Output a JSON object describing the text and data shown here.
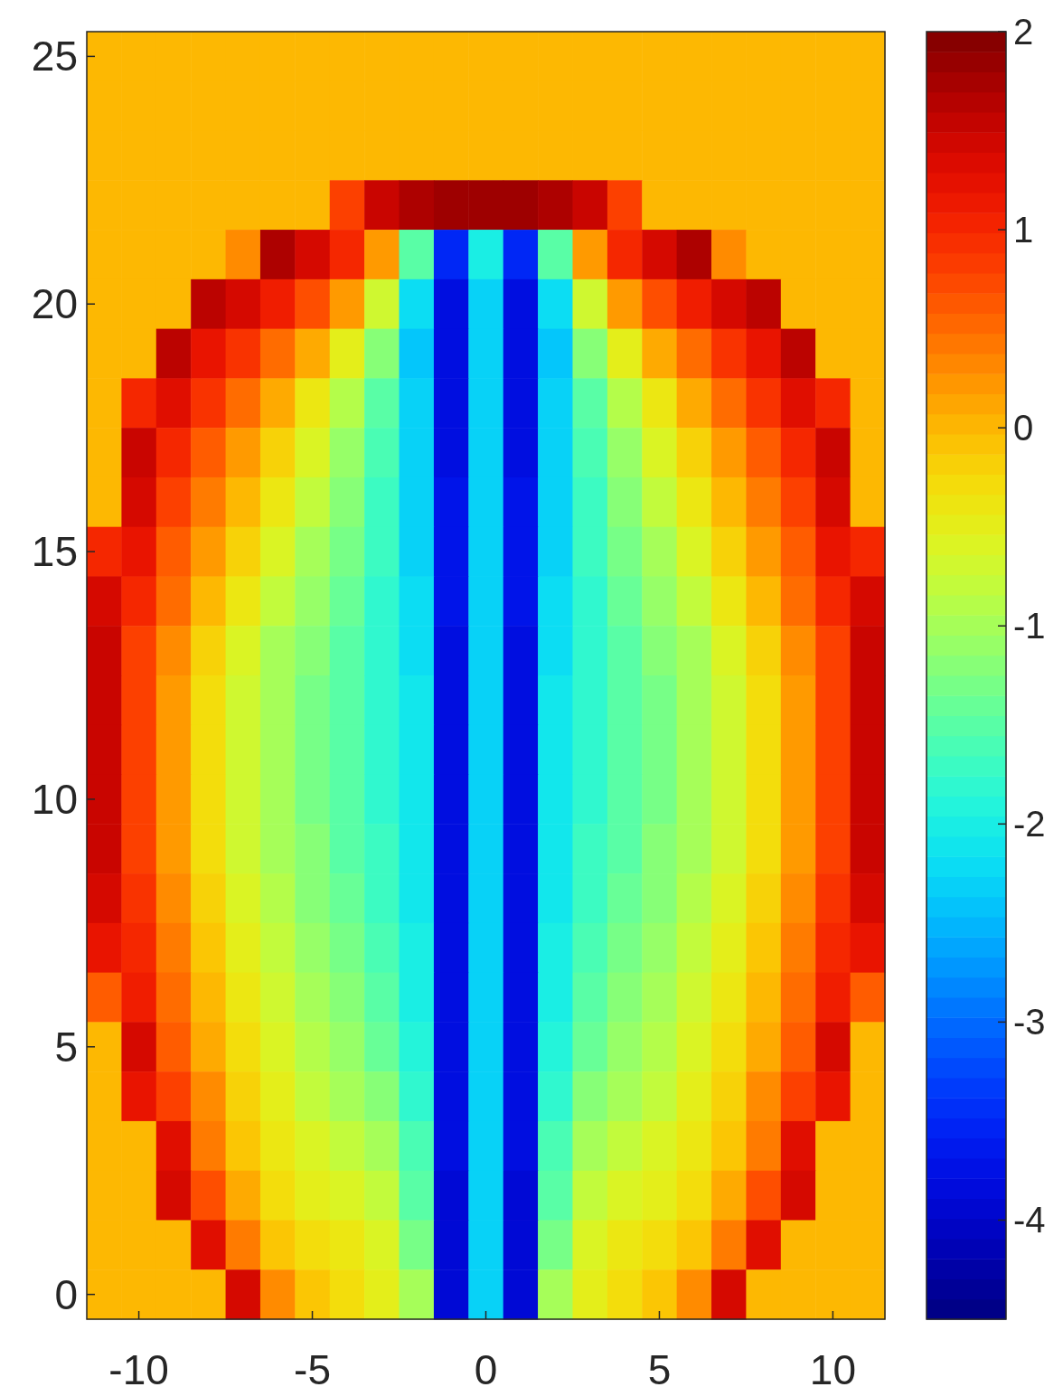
{
  "chart_data": {
    "type": "heatmap",
    "categories": [
      null,
      "-10",
      null,
      null,
      null,
      null,
      "-5",
      null,
      null,
      null,
      null,
      "0",
      null,
      null,
      null,
      null,
      "5",
      null,
      null,
      null,
      null,
      "10",
      null
    ],
    "y_categories": [
      "25",
      null,
      null,
      null,
      null,
      "20",
      null,
      null,
      null,
      null,
      "15",
      null,
      null,
      null,
      null,
      "10",
      null,
      null,
      null,
      null,
      "5",
      null,
      null,
      null,
      null,
      "0"
    ],
    "clim": [
      -4.5,
      2
    ],
    "cticks": [
      -4,
      -3,
      -2,
      -1,
      0,
      1,
      2
    ],
    "cells": [
      [
        0,
        0,
        0,
        0,
        0,
        0,
        0,
        0,
        0,
        0,
        0,
        0,
        0,
        0,
        0,
        0,
        0,
        0,
        0,
        0,
        0,
        0,
        0
      ],
      [
        0,
        0,
        0,
        0,
        0,
        0,
        0,
        0,
        0,
        0,
        0,
        0,
        0,
        0,
        0,
        0,
        0,
        0,
        0,
        0,
        0,
        0,
        0
      ],
      [
        0,
        0,
        0,
        0,
        0,
        0,
        0,
        0,
        0,
        0,
        0,
        0,
        0,
        0,
        0,
        0,
        0,
        0,
        0,
        0,
        0,
        0,
        0
      ],
      [
        0,
        0,
        0,
        0,
        0,
        0,
        0,
        0.8,
        1.5,
        1.7,
        1.8,
        1.8,
        1.8,
        1.7,
        1.5,
        0.8,
        0,
        0,
        0,
        0,
        0,
        0,
        0
      ],
      [
        0,
        0,
        0,
        0,
        0.3,
        1.7,
        1.4,
        1.0,
        0.2,
        -1.5,
        -3.5,
        -2.0,
        -3.5,
        -1.5,
        0.2,
        1.0,
        1.4,
        1.7,
        0.3,
        0,
        0,
        0,
        0
      ],
      [
        0,
        0,
        0,
        1.6,
        1.4,
        1.1,
        0.7,
        0.2,
        -0.7,
        -2.2,
        -3.8,
        -2.3,
        -3.8,
        -2.2,
        -0.7,
        0.2,
        0.7,
        1.1,
        1.4,
        1.6,
        0,
        0,
        0
      ],
      [
        0,
        0,
        1.6,
        1.2,
        0.9,
        0.5,
        0.1,
        -0.5,
        -1.2,
        -2.4,
        -3.8,
        -2.3,
        -3.8,
        -2.4,
        -1.2,
        -0.5,
        0.1,
        0.5,
        0.9,
        1.2,
        1.6,
        0,
        0
      ],
      [
        0,
        1.0,
        1.3,
        0.9,
        0.5,
        0.1,
        -0.4,
        -0.9,
        -1.5,
        -2.3,
        -3.8,
        -2.3,
        -3.8,
        -2.3,
        -1.5,
        -0.9,
        -0.4,
        0.1,
        0.5,
        0.9,
        1.3,
        1.0,
        0
      ],
      [
        0,
        1.5,
        1.0,
        0.6,
        0.2,
        -0.2,
        -0.6,
        -1.1,
        -1.6,
        -2.3,
        -3.8,
        -2.3,
        -3.8,
        -2.3,
        -1.6,
        -1.1,
        -0.6,
        -0.2,
        0.2,
        0.6,
        1.0,
        1.5,
        0
      ],
      [
        0,
        1.4,
        0.8,
        0.4,
        0.0,
        -0.4,
        -0.8,
        -1.2,
        -1.7,
        -2.3,
        -3.7,
        -2.3,
        -3.7,
        -2.3,
        -1.7,
        -1.2,
        -0.8,
        -0.4,
        0.0,
        0.4,
        0.8,
        1.4,
        0
      ],
      [
        1.0,
        1.2,
        0.6,
        0.2,
        -0.2,
        -0.6,
        -1.0,
        -1.3,
        -1.7,
        -2.3,
        -3.7,
        -2.3,
        -3.7,
        -2.3,
        -1.7,
        -1.3,
        -1.0,
        -0.6,
        -0.2,
        0.2,
        0.6,
        1.2,
        1.0
      ],
      [
        1.4,
        1.0,
        0.5,
        0.0,
        -0.4,
        -0.8,
        -1.1,
        -1.4,
        -1.8,
        -2.2,
        -3.7,
        -2.3,
        -3.7,
        -2.2,
        -1.8,
        -1.4,
        -1.1,
        -0.8,
        -0.4,
        0.0,
        0.5,
        1.0,
        1.4
      ],
      [
        1.5,
        0.8,
        0.3,
        -0.2,
        -0.6,
        -1.0,
        -1.2,
        -1.5,
        -1.8,
        -2.2,
        -3.8,
        -2.3,
        -3.8,
        -2.2,
        -1.8,
        -1.5,
        -1.2,
        -1.0,
        -0.6,
        -0.2,
        0.3,
        0.8,
        1.5
      ],
      [
        1.5,
        0.8,
        0.2,
        -0.3,
        -0.7,
        -1.0,
        -1.3,
        -1.5,
        -1.8,
        -2.1,
        -3.8,
        -2.3,
        -3.8,
        -2.1,
        -1.8,
        -1.5,
        -1.3,
        -1.0,
        -0.7,
        -0.3,
        0.2,
        0.8,
        1.5
      ],
      [
        1.5,
        0.8,
        0.2,
        -0.3,
        -0.7,
        -1.0,
        -1.3,
        -1.5,
        -1.8,
        -2.1,
        -3.8,
        -2.3,
        -3.8,
        -2.1,
        -1.8,
        -1.5,
        -1.3,
        -1.0,
        -0.7,
        -0.3,
        0.2,
        0.8,
        1.5
      ],
      [
        1.5,
        0.8,
        0.2,
        -0.3,
        -0.7,
        -1.0,
        -1.3,
        -1.5,
        -1.8,
        -2.1,
        -3.8,
        -2.3,
        -3.8,
        -2.1,
        -1.8,
        -1.5,
        -1.3,
        -1.0,
        -0.7,
        -0.3,
        0.2,
        0.8,
        1.5
      ],
      [
        1.5,
        0.8,
        0.2,
        -0.3,
        -0.7,
        -1.0,
        -1.2,
        -1.5,
        -1.7,
        -2.1,
        -3.8,
        -2.3,
        -3.8,
        -2.1,
        -1.7,
        -1.5,
        -1.2,
        -1.0,
        -0.7,
        -0.3,
        0.2,
        0.8,
        1.5
      ],
      [
        1.4,
        0.9,
        0.3,
        -0.2,
        -0.6,
        -0.9,
        -1.2,
        -1.4,
        -1.7,
        -2.1,
        -3.8,
        -2.3,
        -3.8,
        -2.1,
        -1.7,
        -1.4,
        -1.2,
        -0.9,
        -0.6,
        -0.2,
        0.3,
        0.9,
        1.4
      ],
      [
        1.2,
        1.0,
        0.4,
        -0.1,
        -0.5,
        -0.8,
        -1.1,
        -1.3,
        -1.6,
        -2.0,
        -3.8,
        -2.3,
        -3.8,
        -2.0,
        -1.6,
        -1.3,
        -1.1,
        -0.8,
        -0.5,
        -0.1,
        0.4,
        1.0,
        1.2
      ],
      [
        0.6,
        1.1,
        0.5,
        0.0,
        -0.4,
        -0.7,
        -1.0,
        -1.2,
        -1.5,
        -2.0,
        -3.8,
        -2.3,
        -3.8,
        -2.0,
        -1.5,
        -1.2,
        -1.0,
        -0.7,
        -0.4,
        0.0,
        0.5,
        1.1,
        0.6
      ],
      [
        0,
        1.4,
        0.6,
        0.1,
        -0.3,
        -0.6,
        -0.9,
        -1.1,
        -1.4,
        -1.9,
        -3.8,
        -2.3,
        -3.8,
        -1.9,
        -1.4,
        -1.1,
        -0.9,
        -0.6,
        -0.3,
        0.1,
        0.6,
        1.4,
        0
      ],
      [
        0,
        1.2,
        0.8,
        0.3,
        -0.2,
        -0.5,
        -0.8,
        -1.0,
        -1.2,
        -1.8,
        -3.8,
        -2.3,
        -3.8,
        -1.8,
        -1.2,
        -1.0,
        -0.8,
        -0.5,
        -0.2,
        0.3,
        0.8,
        1.2,
        0
      ],
      [
        0,
        0,
        1.3,
        0.4,
        -0.1,
        -0.4,
        -0.6,
        -0.8,
        -1.0,
        -1.6,
        -3.8,
        -2.3,
        -3.8,
        -1.6,
        -1.0,
        -0.8,
        -0.6,
        -0.4,
        -0.1,
        0.4,
        1.3,
        0,
        0
      ],
      [
        0,
        0,
        1.4,
        0.7,
        0.1,
        -0.3,
        -0.5,
        -0.6,
        -0.8,
        -1.5,
        -3.9,
        -2.3,
        -3.9,
        -1.5,
        -0.8,
        -0.6,
        -0.5,
        -0.3,
        0.1,
        0.7,
        1.4,
        0,
        0
      ],
      [
        0,
        0,
        0,
        1.3,
        0.4,
        -0.1,
        -0.3,
        -0.4,
        -0.6,
        -1.3,
        -3.9,
        -2.3,
        -3.9,
        -1.3,
        -0.6,
        -0.4,
        -0.3,
        -0.1,
        0.4,
        1.3,
        0,
        0,
        0
      ],
      [
        0,
        0,
        0,
        0,
        1.4,
        0.3,
        -0.1,
        -0.3,
        -0.5,
        -1.0,
        -3.9,
        -2.3,
        -3.9,
        -1.0,
        -0.5,
        -0.3,
        -0.1,
        0.3,
        1.4,
        0,
        0,
        0,
        0
      ]
    ]
  }
}
